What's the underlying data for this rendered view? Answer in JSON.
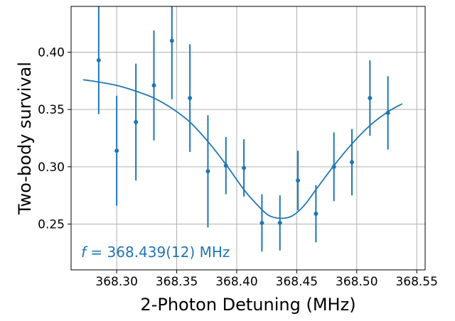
{
  "chart_data": {
    "type": "scatter",
    "title": "",
    "xlabel": "2-Photon Detuning (MHz)",
    "ylabel": "Two-body survival",
    "xlim": [
      368.262,
      368.557
    ],
    "ylim": [
      0.21,
      0.44
    ],
    "xticks": [
      368.3,
      368.35,
      368.4,
      368.45,
      368.5,
      368.55
    ],
    "xtick_labels": [
      "368.30",
      "368.35",
      "368.40",
      "368.45",
      "368.50",
      "368.55"
    ],
    "yticks": [
      0.25,
      0.3,
      0.35,
      0.4
    ],
    "ytick_labels": [
      "0.25",
      "0.30",
      "0.35",
      "0.40"
    ],
    "grid": true,
    "color": "#1f77b4",
    "annotation": {
      "symbol": "f",
      "text": " = 368.439(12) MHz",
      "position": "bottom-left"
    },
    "series": [
      {
        "kind": "errorbar",
        "points": [
          {
            "x": 368.285,
            "y": 0.393,
            "yerr": 0.047
          },
          {
            "x": 368.3,
            "y": 0.314,
            "yerr": 0.048
          },
          {
            "x": 368.316,
            "y": 0.339,
            "yerr": 0.051
          },
          {
            "x": 368.331,
            "y": 0.371,
            "yerr": 0.048
          },
          {
            "x": 368.346,
            "y": 0.41,
            "yerr": 0.051
          },
          {
            "x": 368.361,
            "y": 0.36,
            "yerr": 0.047
          },
          {
            "x": 368.376,
            "y": 0.296,
            "yerr": 0.049
          },
          {
            "x": 368.391,
            "y": 0.301,
            "yerr": 0.025
          },
          {
            "x": 368.406,
            "y": 0.299,
            "yerr": 0.025
          },
          {
            "x": 368.421,
            "y": 0.251,
            "yerr": 0.025
          },
          {
            "x": 368.436,
            "y": 0.251,
            "yerr": 0.024
          },
          {
            "x": 368.451,
            "y": 0.288,
            "yerr": 0.026
          },
          {
            "x": 368.466,
            "y": 0.259,
            "yerr": 0.025
          },
          {
            "x": 368.481,
            "y": 0.3,
            "yerr": 0.03
          },
          {
            "x": 368.496,
            "y": 0.304,
            "yerr": 0.029
          },
          {
            "x": 368.511,
            "y": 0.36,
            "yerr": 0.033
          },
          {
            "x": 368.526,
            "y": 0.347,
            "yerr": 0.032
          }
        ]
      },
      {
        "kind": "fit",
        "x": [
          368.272,
          368.285,
          368.3,
          368.316,
          368.331,
          368.346,
          368.361,
          368.376,
          368.391,
          368.406,
          368.416,
          368.426,
          368.436,
          368.446,
          368.456,
          368.466,
          368.481,
          368.496,
          368.511,
          368.526,
          368.538
        ],
        "y": [
          0.376,
          0.374,
          0.371,
          0.366,
          0.36,
          0.351,
          0.339,
          0.322,
          0.302,
          0.28,
          0.268,
          0.258,
          0.255,
          0.257,
          0.266,
          0.28,
          0.301,
          0.32,
          0.336,
          0.348,
          0.355
        ]
      }
    ]
  }
}
